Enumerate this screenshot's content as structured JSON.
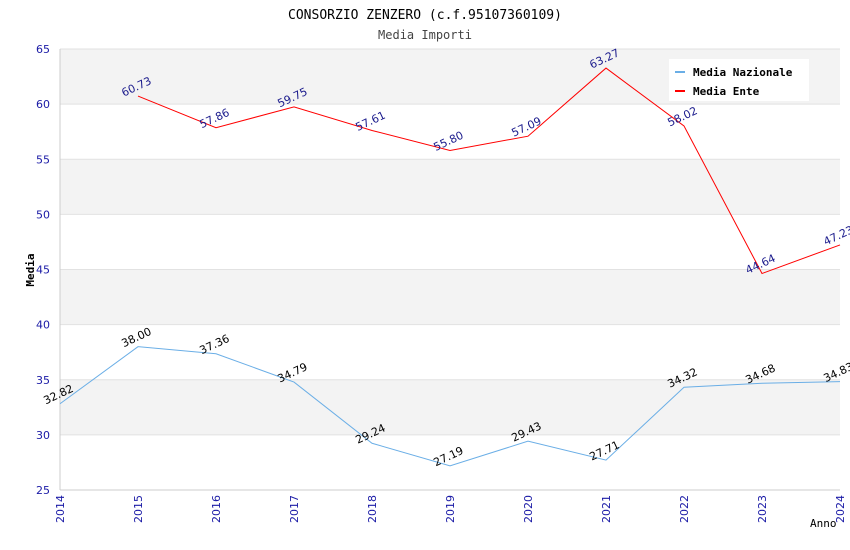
{
  "chart_data": {
    "type": "line",
    "title": "CONSORZIO ZENZERO (c.f.95107360109)",
    "subtitle": "Media Importi",
    "xlabel": "Anno",
    "ylabel": "Media",
    "x": [
      "2014",
      "2015",
      "2016",
      "2017",
      "2018",
      "2019",
      "2020",
      "2021",
      "2022",
      "2023",
      "2024"
    ],
    "ylim": [
      25,
      65
    ],
    "yticks": [
      "25",
      "30",
      "35",
      "40",
      "45",
      "50",
      "55",
      "60",
      "65"
    ],
    "grid": true,
    "legend_position": "top-right",
    "series": [
      {
        "name": "Media Nazionale",
        "color": "#6aaee6",
        "label_color": "#000000",
        "values": [
          32.82,
          38.0,
          37.36,
          34.79,
          29.24,
          27.19,
          29.43,
          27.71,
          34.32,
          34.68,
          34.83
        ],
        "labels": [
          "32.82",
          "38.00",
          "37.36",
          "34.79",
          "29.24",
          "27.19",
          "29.43",
          "27.71",
          "34.32",
          "34.68",
          "34.83"
        ]
      },
      {
        "name": "Media Ente",
        "color": "#ff0000",
        "label_color": "#1a1a8c",
        "values": [
          null,
          60.73,
          57.86,
          59.75,
          57.61,
          55.8,
          57.09,
          63.27,
          58.02,
          44.64,
          47.23
        ],
        "labels": [
          null,
          "60.73",
          "57.86",
          "59.75",
          "57.61",
          "55.80",
          "57.09",
          "63.27",
          "58.02",
          "44.64",
          "47.23"
        ]
      }
    ]
  }
}
